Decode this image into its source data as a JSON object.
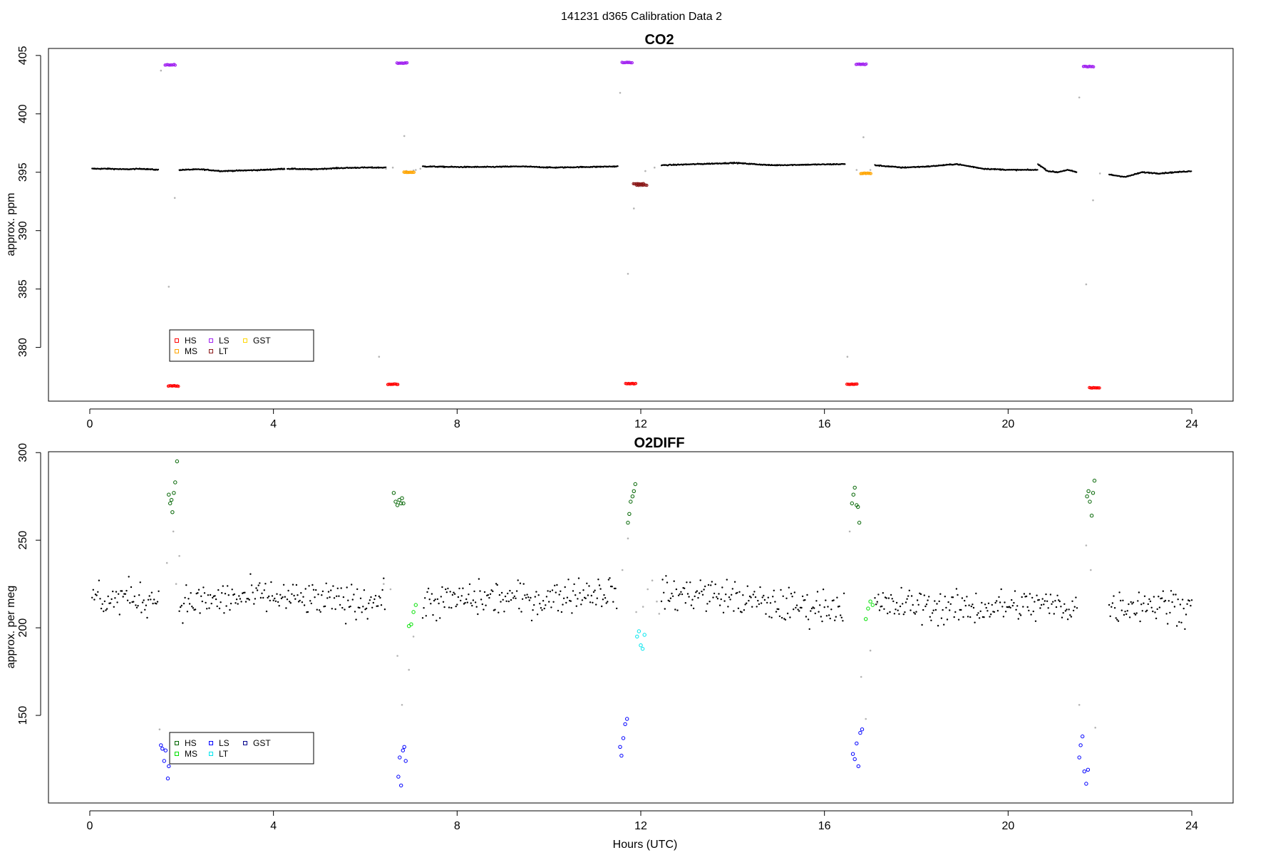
{
  "figure": {
    "title": "141231   d365   Calibration Data 2"
  },
  "chart_data": [
    {
      "type": "scatter",
      "title": "CO2",
      "xlabel": "",
      "ylabel": "approx. ppm",
      "xlim": [
        -0.9,
        24.9
      ],
      "ylim": [
        375.4,
        405.6
      ],
      "xticks": [
        "0",
        "4",
        "8",
        "12",
        "16",
        "20",
        "24"
      ],
      "yticks": [
        "380",
        "385",
        "390",
        "395",
        "400",
        "405"
      ],
      "legend": {
        "position": "bottom-left",
        "entries": [
          "HS",
          "MS",
          "LS",
          "LT",
          "GST"
        ]
      },
      "colors": {
        "ambient": "#000000",
        "transition": "#b4b4b4",
        "HS": "#ff0000",
        "MS": "#ffa500",
        "LS": "#a020f0",
        "LT": "#8b1a1a",
        "GST": "#ffd700"
      },
      "series": [
        {
          "name": "ambient",
          "segments": [
            {
              "x0": 0.05,
              "x1": 1.5,
              "y": [
                395.3,
                395.3,
                395.25,
                395.3,
                395.2
              ]
            },
            {
              "x0": 1.95,
              "x1": 4.25,
              "y": [
                395.2,
                395.25,
                395.1,
                395.15,
                395.2,
                395.3
              ]
            },
            {
              "x0": 4.3,
              "x1": 6.45,
              "y": [
                395.3,
                395.25,
                395.35,
                395.4,
                395.4
              ]
            },
            {
              "x0": 7.25,
              "x1": 11.5,
              "y": [
                395.5,
                395.45,
                395.45,
                395.5,
                395.4,
                395.45,
                395.5
              ]
            },
            {
              "x0": 12.45,
              "x1": 16.45,
              "y": [
                395.6,
                395.7,
                395.8,
                395.6,
                395.65,
                395.7
              ]
            },
            {
              "x0": 17.1,
              "x1": 20.65,
              "y": [
                395.6,
                395.4,
                395.5,
                395.7,
                395.3,
                395.2,
                395.2
              ]
            },
            {
              "x0": 20.65,
              "x1": 21.5,
              "y": [
                395.7,
                395.1,
                395.0,
                395.2,
                395.0
              ]
            },
            {
              "x0": 22.2,
              "x1": 24.0,
              "y": [
                394.8,
                394.6,
                395.0,
                394.9,
                395.0,
                395.1
              ]
            }
          ]
        },
        {
          "name": "transition",
          "points": [
            [
              1.55,
              403.7
            ],
            [
              1.72,
              385.2
            ],
            [
              1.85,
              392.8
            ],
            [
              6.3,
              379.2
            ],
            [
              6.45,
              395.3
            ],
            [
              6.6,
              395.4
            ],
            [
              6.85,
              398.1
            ],
            [
              7.1,
              395.2
            ],
            [
              11.55,
              401.8
            ],
            [
              11.72,
              386.3
            ],
            [
              11.85,
              391.9
            ],
            [
              12.0,
              393.8
            ],
            [
              16.5,
              379.2
            ],
            [
              16.7,
              395.2
            ],
            [
              16.85,
              398.0
            ],
            [
              21.55,
              401.4
            ],
            [
              21.7,
              385.4
            ],
            [
              21.85,
              392.6
            ],
            [
              6.9,
              395.1
            ],
            [
              7.05,
              395.15
            ],
            [
              7.2,
              395.3
            ],
            [
              12.1,
              395.1
            ],
            [
              12.3,
              395.4
            ],
            [
              17.0,
              395.2
            ],
            [
              22.0,
              394.9
            ]
          ]
        },
        {
          "name": "LS",
          "points": [
            [
              1.75,
              404.2
            ],
            [
              6.8,
              404.35
            ],
            [
              11.7,
              404.4
            ],
            [
              16.8,
              404.25
            ],
            [
              21.75,
              404.05
            ]
          ]
        },
        {
          "name": "HS",
          "points": [
            [
              1.82,
              376.7
            ],
            [
              6.6,
              376.85
            ],
            [
              11.78,
              376.9
            ],
            [
              16.6,
              376.85
            ],
            [
              21.88,
              376.55
            ]
          ]
        },
        {
          "name": "MS",
          "points": [
            [
              6.95,
              395.0
            ],
            [
              16.9,
              394.9
            ]
          ]
        },
        {
          "name": "LT",
          "points": [
            [
              11.95,
              394.0
            ],
            [
              12.02,
              393.9
            ]
          ]
        }
      ]
    },
    {
      "type": "scatter",
      "title": "O2DIFF",
      "xlabel": "Hours (UTC)",
      "ylabel": "approx. per meg",
      "xlim": [
        -0.9,
        24.9
      ],
      "ylim": [
        100.0,
        300.5
      ],
      "xticks": [
        "0",
        "4",
        "8",
        "12",
        "16",
        "20",
        "24"
      ],
      "yticks": [
        "150",
        "200",
        "250",
        "300"
      ],
      "legend": {
        "position": "bottom-left",
        "entries": [
          "HS",
          "MS",
          "LS",
          "LT",
          "GST"
        ]
      },
      "colors": {
        "ambient": "#000000",
        "transition": "#b4b4b4",
        "HS": "#006400",
        "MS": "#00e000",
        "LS": "#0000ff",
        "LT": "#00e5ee",
        "GST": "#00008b"
      },
      "series": [
        {
          "name": "ambient",
          "segments": [
            {
              "x0": 0.05,
              "x1": 1.5,
              "y": [
                219,
                215,
                218,
                216,
                217
              ]
            },
            {
              "x0": 1.95,
              "x1": 6.45,
              "y": [
                214,
                216,
                218,
                216,
                215,
                216
              ]
            },
            {
              "x0": 7.25,
              "x1": 11.5,
              "y": [
                214,
                216,
                217,
                216,
                220,
                221
              ]
            },
            {
              "x0": 12.45,
              "x1": 16.45,
              "y": [
                218,
                220,
                217,
                213,
                212,
                213
              ]
            },
            {
              "x0": 17.1,
              "x1": 21.5,
              "y": [
                212,
                213,
                211,
                212,
                213,
                212
              ]
            },
            {
              "x0": 22.2,
              "x1": 24.0,
              "y": [
                212,
                213,
                214,
                213,
                212
              ]
            }
          ]
        },
        {
          "name": "transition",
          "points": [
            [
              1.52,
              142
            ],
            [
              1.68,
              237
            ],
            [
              1.82,
              255
            ],
            [
              1.95,
              241
            ],
            [
              6.4,
              225
            ],
            [
              6.7,
              184
            ],
            [
              6.8,
              156
            ],
            [
              6.95,
              176
            ],
            [
              7.05,
              195
            ],
            [
              11.6,
              233
            ],
            [
              11.72,
              251
            ],
            [
              11.9,
              209
            ],
            [
              12.05,
              212
            ],
            [
              12.15,
              222
            ],
            [
              12.25,
              227
            ],
            [
              12.35,
              215
            ],
            [
              12.4,
              208
            ],
            [
              16.55,
              255
            ],
            [
              16.8,
              172
            ],
            [
              16.9,
              148
            ],
            [
              17.0,
              187
            ],
            [
              21.55,
              156
            ],
            [
              21.7,
              247
            ],
            [
              21.8,
              233
            ],
            [
              21.9,
              143
            ],
            [
              1.88,
              225
            ],
            [
              6.55,
              222
            ],
            [
              17.15,
              214
            ]
          ]
        },
        {
          "name": "HS",
          "points": [
            [
              1.72,
              276
            ],
            [
              1.75,
              271
            ],
            [
              1.78,
              273
            ],
            [
              1.8,
              266
            ],
            [
              1.83,
              277
            ],
            [
              1.86,
              283
            ],
            [
              1.9,
              295
            ],
            [
              6.62,
              277
            ],
            [
              6.66,
              272
            ],
            [
              6.7,
              270
            ],
            [
              6.74,
              273
            ],
            [
              6.78,
              271
            ],
            [
              6.8,
              274
            ],
            [
              6.83,
              271
            ],
            [
              11.72,
              260
            ],
            [
              11.75,
              265
            ],
            [
              11.78,
              272
            ],
            [
              11.82,
              275
            ],
            [
              11.85,
              278
            ],
            [
              11.88,
              282
            ],
            [
              16.6,
              271
            ],
            [
              16.63,
              276
            ],
            [
              16.66,
              280
            ],
            [
              16.7,
              270
            ],
            [
              16.73,
              269
            ],
            [
              16.76,
              260
            ],
            [
              21.72,
              275
            ],
            [
              21.75,
              278
            ],
            [
              21.78,
              272
            ],
            [
              21.82,
              264
            ],
            [
              21.85,
              277
            ],
            [
              21.88,
              284
            ]
          ]
        },
        {
          "name": "MS",
          "points": [
            [
              6.95,
              201
            ],
            [
              7.0,
              202
            ],
            [
              7.05,
              209
            ],
            [
              7.1,
              213
            ],
            [
              16.9,
              205
            ],
            [
              16.95,
              211
            ],
            [
              17.0,
              215
            ],
            [
              17.05,
              213
            ]
          ]
        },
        {
          "name": "LS",
          "points": [
            [
              1.55,
              133
            ],
            [
              1.58,
              131
            ],
            [
              1.62,
              124
            ],
            [
              1.65,
              130
            ],
            [
              1.7,
              114
            ],
            [
              1.72,
              121
            ],
            [
              6.72,
              115
            ],
            [
              6.75,
              126
            ],
            [
              6.78,
              110
            ],
            [
              6.82,
              130
            ],
            [
              6.85,
              132
            ],
            [
              6.88,
              124
            ],
            [
              11.55,
              132
            ],
            [
              11.58,
              127
            ],
            [
              11.62,
              137
            ],
            [
              11.66,
              145
            ],
            [
              11.7,
              148
            ],
            [
              16.62,
              128
            ],
            [
              16.66,
              125
            ],
            [
              16.7,
              134
            ],
            [
              16.74,
              121
            ],
            [
              16.78,
              140
            ],
            [
              16.82,
              142
            ],
            [
              21.55,
              126
            ],
            [
              21.58,
              133
            ],
            [
              21.62,
              138
            ],
            [
              21.66,
              118
            ],
            [
              21.7,
              111
            ],
            [
              21.74,
              119
            ]
          ]
        },
        {
          "name": "LT",
          "points": [
            [
              11.92,
              195
            ],
            [
              11.96,
              198
            ],
            [
              12.0,
              190
            ],
            [
              12.04,
              188
            ],
            [
              12.08,
              196
            ]
          ]
        }
      ]
    }
  ]
}
